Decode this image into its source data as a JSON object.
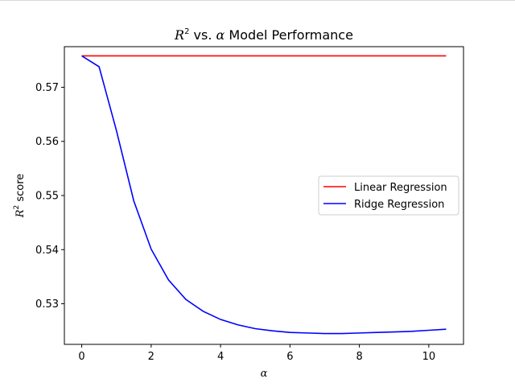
{
  "chart_data": {
    "type": "line",
    "title": {
      "prefix": "R",
      "sup": "2",
      "middle": " vs. ",
      "greek": "α",
      "suffix": " Model Performance"
    },
    "xlabel": "α",
    "ylabel": {
      "prefix": "R",
      "sup": "2",
      "suffix": " score"
    },
    "xlim": [
      -0.5,
      11.0
    ],
    "ylim": [
      0.5225,
      0.5775
    ],
    "xticks": [
      0,
      2,
      4,
      6,
      8,
      10
    ],
    "yticks": [
      0.53,
      0.54,
      0.55,
      0.56,
      0.57
    ],
    "grid": false,
    "legend_position": "center-right",
    "series": [
      {
        "name": "Linear Regression",
        "color": "#ff0000",
        "x": [
          0,
          10.5
        ],
        "y": [
          0.5758,
          0.5758
        ]
      },
      {
        "name": "Ridge Regression",
        "color": "#0000ff",
        "x": [
          0,
          0.5,
          1.0,
          1.5,
          2.0,
          2.5,
          3.0,
          3.5,
          4.0,
          4.5,
          5.0,
          5.5,
          6.0,
          6.5,
          7.0,
          7.5,
          8.0,
          8.5,
          9.0,
          9.5,
          10.0,
          10.5
        ],
        "y": [
          0.5758,
          0.5738,
          0.562,
          0.549,
          0.5401,
          0.5344,
          0.5308,
          0.5286,
          0.5271,
          0.5261,
          0.5254,
          0.525,
          0.5247,
          0.5246,
          0.5245,
          0.5245,
          0.5246,
          0.5247,
          0.5248,
          0.5249,
          0.5251,
          0.5253
        ]
      }
    ]
  }
}
